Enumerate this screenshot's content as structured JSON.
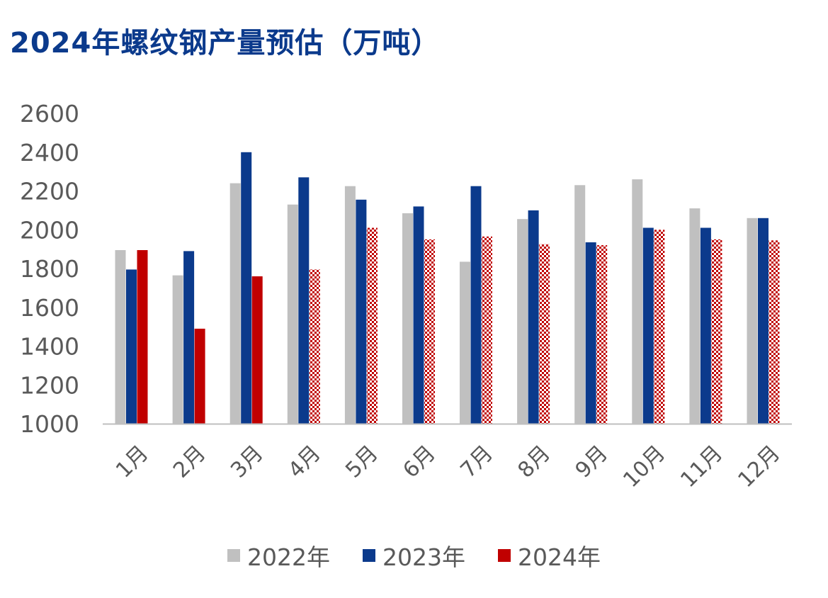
{
  "title": "2024年螺纹钢产量预估（万吨）",
  "colors": {
    "2022": "#c0c0c0",
    "2023": "#0b3a8c",
    "2024": "#c00000",
    "axis": "#bfbfbf",
    "text": "#595959"
  },
  "chart_data": {
    "type": "bar",
    "title": "2024年螺纹钢产量预估（万吨）",
    "categories": [
      "1月",
      "2月",
      "3月",
      "4月",
      "5月",
      "6月",
      "7月",
      "8月",
      "9月",
      "10月",
      "11月",
      "12月"
    ],
    "ylim": [
      1000,
      2600
    ],
    "yticks": [
      "1000",
      "1200",
      "1400",
      "1600",
      "1800",
      "2000",
      "2200",
      "2400",
      "2600"
    ],
    "grid": false,
    "legend_position": "bottom",
    "series": [
      {
        "name": "2022年",
        "color": "#c0c0c0",
        "pattern": "solid",
        "values": [
          1895,
          1765,
          2240,
          2130,
          2225,
          2085,
          1835,
          2055,
          2230,
          2260,
          2110,
          2060
        ]
      },
      {
        "name": "2023年",
        "color": "#0b3a8c",
        "pattern": "solid",
        "values": [
          1795,
          1890,
          2400,
          2270,
          2155,
          2120,
          2225,
          2100,
          1935,
          2010,
          2010,
          2060
        ]
      },
      {
        "name": "2024年",
        "color": "#c00000",
        "pattern": "solid-then-checker",
        "values": [
          1895,
          1490,
          1760,
          1795,
          2010,
          1950,
          1965,
          1925,
          1920,
          2000,
          1950,
          1945
        ]
      }
    ]
  }
}
